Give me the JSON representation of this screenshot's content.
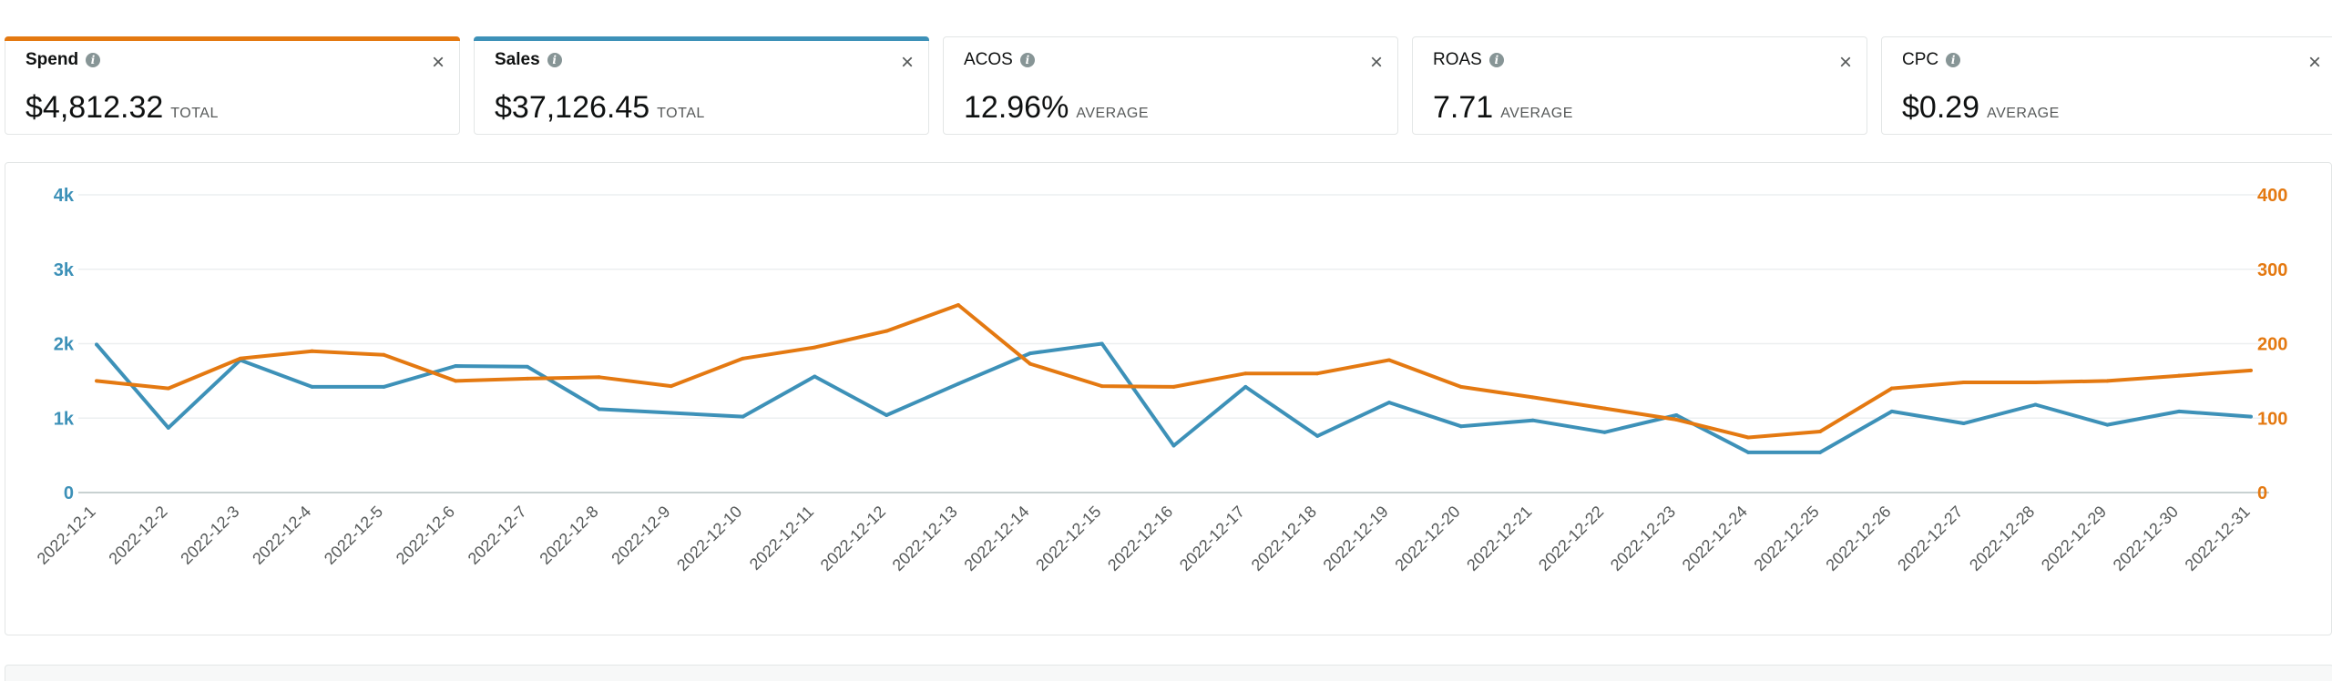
{
  "metrics": [
    {
      "key": "spend",
      "title": "Spend",
      "value": "$4,812.32",
      "agg": "TOTAL",
      "active": true,
      "color": "#e47911"
    },
    {
      "key": "sales",
      "title": "Sales",
      "value": "$37,126.45",
      "agg": "TOTAL",
      "active": true,
      "color": "#3d91b8"
    },
    {
      "key": "acos",
      "title": "ACOS",
      "value": "12.96%",
      "agg": "AVERAGE",
      "active": false,
      "color": ""
    },
    {
      "key": "roas",
      "title": "ROAS",
      "value": "7.71",
      "agg": "AVERAGE",
      "active": false,
      "color": ""
    },
    {
      "key": "cpc",
      "title": "CPC",
      "value": "$0.29",
      "agg": "AVERAGE",
      "active": false,
      "color": ""
    }
  ],
  "icons": {
    "info": "info-icon",
    "close": "close-icon"
  },
  "close_glyph": "×",
  "info_glyph": "i",
  "chart_data": {
    "type": "line",
    "x": [
      "2022-12-1",
      "2022-12-2",
      "2022-12-3",
      "2022-12-4",
      "2022-12-5",
      "2022-12-6",
      "2022-12-7",
      "2022-12-8",
      "2022-12-9",
      "2022-12-10",
      "2022-12-11",
      "2022-12-12",
      "2022-12-13",
      "2022-12-14",
      "2022-12-15",
      "2022-12-16",
      "2022-12-17",
      "2022-12-18",
      "2022-12-19",
      "2022-12-20",
      "2022-12-21",
      "2022-12-22",
      "2022-12-23",
      "2022-12-24",
      "2022-12-25",
      "2022-12-26",
      "2022-12-27",
      "2022-12-28",
      "2022-12-29",
      "2022-12-30",
      "2022-12-31"
    ],
    "y_left": {
      "ticks": [
        0,
        1000,
        2000,
        3000,
        4000
      ],
      "tick_labels": [
        "0",
        "1k",
        "2k",
        "3k",
        "4k"
      ],
      "range": [
        0,
        4000
      ],
      "color": "#3d91b8"
    },
    "y_right": {
      "ticks": [
        0,
        100,
        200,
        300,
        400
      ],
      "tick_labels": [
        "0",
        "100",
        "200",
        "300",
        "400"
      ],
      "range": [
        0,
        400
      ],
      "color": "#e47911"
    },
    "grid": true,
    "series": [
      {
        "key": "sales",
        "axis": "left",
        "color": "#3d91b8",
        "values": [
          1990,
          870,
          1780,
          1420,
          1420,
          1700,
          1690,
          1120,
          1070,
          1020,
          1560,
          1040,
          1460,
          1870,
          2000,
          630,
          1420,
          760,
          1210,
          890,
          970,
          810,
          1040,
          540,
          540,
          1090,
          930,
          1180,
          910,
          1090,
          1020
        ]
      },
      {
        "key": "spend",
        "axis": "right",
        "color": "#e47911",
        "values": [
          150,
          140,
          180,
          190,
          185,
          150,
          153,
          155,
          143,
          180,
          195,
          217,
          252,
          173,
          143,
          142,
          160,
          160,
          178,
          142,
          128,
          113,
          98,
          74,
          82,
          140,
          148,
          148,
          150,
          157,
          164
        ]
      }
    ]
  }
}
